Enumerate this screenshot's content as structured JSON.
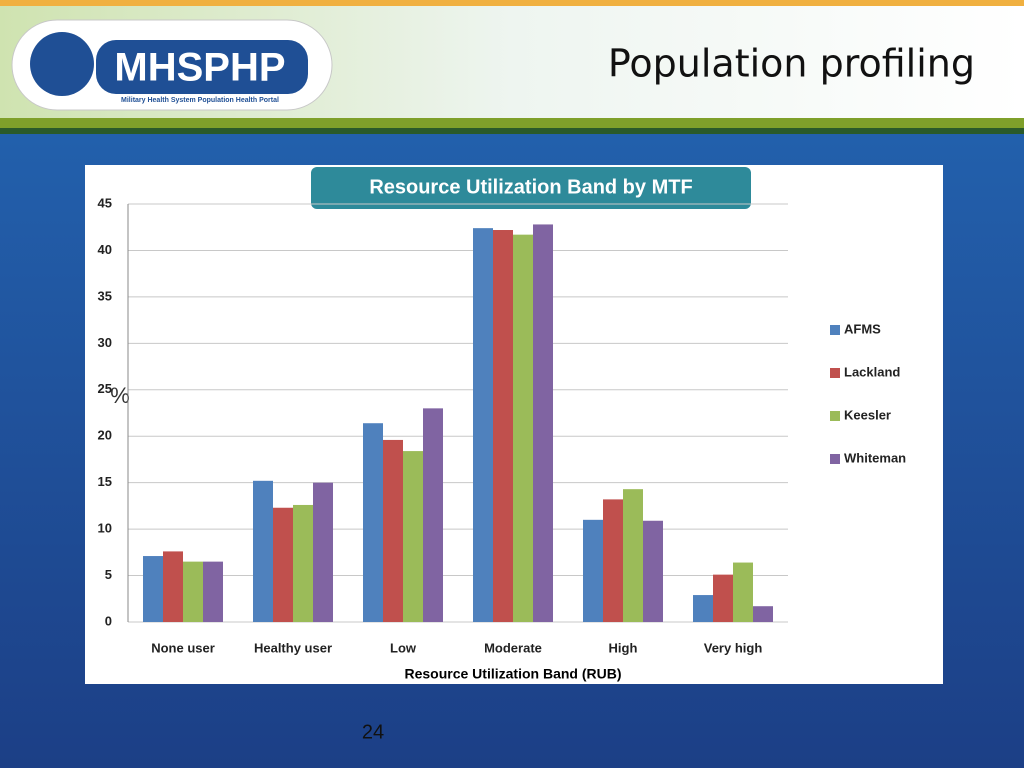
{
  "slide": {
    "title": "Population profiling",
    "logo": "MHSPHP",
    "logo_subtitle": "Military Health System Population Health Portal",
    "page_number": "24"
  },
  "chart_data": {
    "type": "bar",
    "title": "Resource Utilization Band by MTF",
    "x_label": "Resource Utilization Band (RUB)",
    "y_label": "%",
    "categories": [
      "None user",
      "Healthy user",
      "Low",
      "Moderate",
      "High",
      "Very high"
    ],
    "series": [
      {
        "name": "AFMS",
        "color": "#4f81bd",
        "values": [
          7.1,
          15.2,
          21.4,
          42.4,
          11.0,
          2.9
        ]
      },
      {
        "name": "Lackland",
        "color": "#c0504d",
        "values": [
          7.6,
          12.3,
          19.6,
          42.2,
          13.2,
          5.1
        ]
      },
      {
        "name": "Keesler",
        "color": "#9bbb59",
        "values": [
          6.5,
          12.6,
          18.4,
          41.7,
          14.3,
          6.4
        ]
      },
      {
        "name": "Whiteman",
        "color": "#8064a2",
        "values": [
          6.5,
          15.0,
          23.0,
          42.8,
          10.9,
          1.7
        ]
      }
    ],
    "ylim": [
      0,
      45
    ],
    "yticks": [
      0,
      5,
      10,
      15,
      20,
      25,
      30,
      35,
      40,
      45
    ],
    "grid": true,
    "legend": "right"
  }
}
